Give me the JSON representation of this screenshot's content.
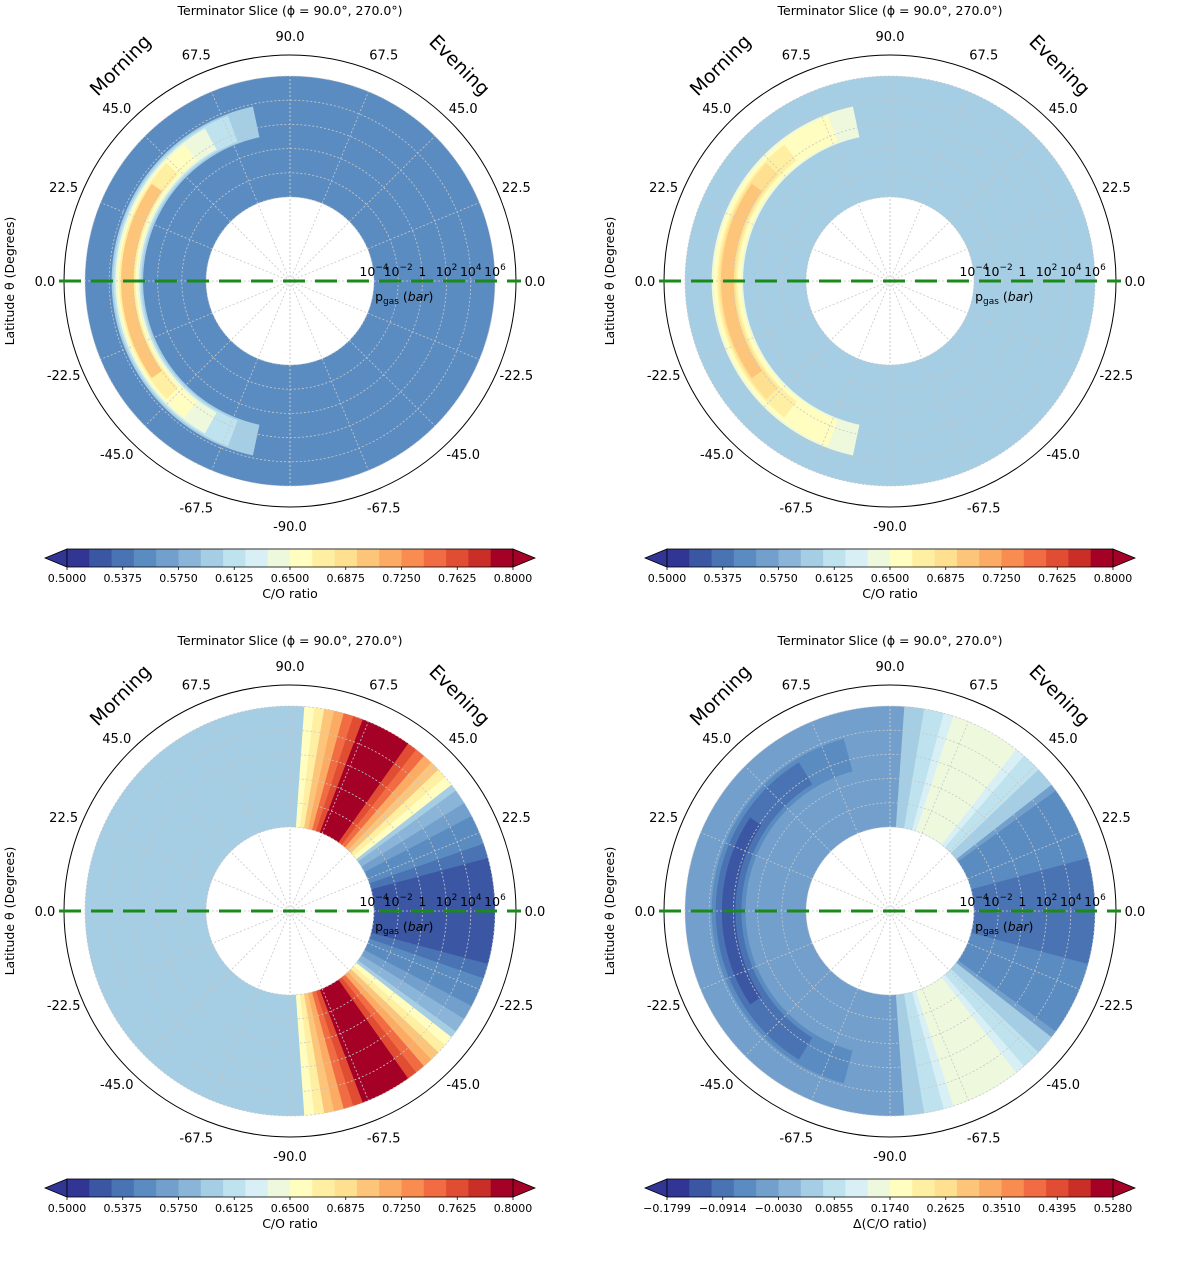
{
  "chart_data": [
    {
      "type": "heatmap",
      "projection": "polar",
      "title": "Terminator Slice (ϕ = 90.0°, 270.0°)",
      "left_label": "Morning",
      "right_label": "Evening",
      "ylabel": "Latitude θ (Degrees)",
      "pressure_label": "pgas (bar)",
      "colorbar_label": "C/O ratio",
      "colorbar_ticks": [
        "0.5000",
        "0.5375",
        "0.5750",
        "0.6125",
        "0.6500",
        "0.6875",
        "0.7250",
        "0.7625",
        "0.8000"
      ],
      "colorbar_range": [
        0.5,
        0.8
      ],
      "latitude_ticks_left": [
        "90.0",
        "67.5",
        "45.0",
        "22.5",
        "0.0",
        "-22.5",
        "-45.0",
        "-67.5",
        "-90.0"
      ],
      "latitude_ticks_right": [
        "67.5",
        "45.0",
        "22.5",
        "0.0",
        "-22.5",
        "-45.0",
        "-67.5"
      ],
      "pressure_ticks": [
        "10^6",
        "10^4",
        "10^2",
        "1",
        "10^-2",
        "10^-4"
      ],
      "background_value": 0.546,
      "features": [
        {
          "kind": "crescent",
          "side": "morning",
          "lat_range": [
            -78,
            78
          ],
          "pressure_log10_range": [
            1.2,
            3.8
          ],
          "peak_value": 0.7
        }
      ]
    },
    {
      "type": "heatmap",
      "projection": "polar",
      "title": "Terminator Slice (ϕ = 90.0°, 270.0°)",
      "left_label": "Morning",
      "right_label": "Evening",
      "ylabel": "Latitude θ (Degrees)",
      "pressure_label": "pgas (bar)",
      "colorbar_label": "C/O ratio",
      "colorbar_ticks": [
        "0.5000",
        "0.5375",
        "0.5750",
        "0.6125",
        "0.6500",
        "0.6875",
        "0.7250",
        "0.7625",
        "0.8000"
      ],
      "colorbar_range": [
        0.5,
        0.8
      ],
      "latitude_ticks_left": [
        "90.0",
        "67.5",
        "45.0",
        "22.5",
        "0.0",
        "-22.5",
        "-45.0",
        "-67.5",
        "-90.0"
      ],
      "latitude_ticks_right": [
        "67.5",
        "45.0",
        "22.5",
        "0.0",
        "-22.5",
        "-45.0",
        "-67.5"
      ],
      "pressure_ticks": [
        "10^6",
        "10^4",
        "10^2",
        "1",
        "10^-2",
        "10^-4"
      ],
      "background_value": 0.6,
      "features": [
        {
          "kind": "crescent",
          "side": "morning",
          "lat_range": [
            -78,
            78
          ],
          "pressure_log10_range": [
            1.2,
            3.8
          ],
          "peak_value": 0.705
        }
      ]
    },
    {
      "type": "heatmap",
      "projection": "polar",
      "title": "Terminator Slice (ϕ = 90.0°, 270.0°)",
      "left_label": "Morning",
      "right_label": "Evening",
      "ylabel": "Latitude θ (Degrees)",
      "pressure_label": "pgas (bar)",
      "colorbar_label": "C/O ratio",
      "colorbar_ticks": [
        "0.5000",
        "0.5375",
        "0.5750",
        "0.6125",
        "0.6500",
        "0.6875",
        "0.7250",
        "0.7625",
        "0.8000"
      ],
      "colorbar_range": [
        0.5,
        0.8
      ],
      "latitude_ticks_left": [
        "90.0",
        "67.5",
        "45.0",
        "22.5",
        "0.0",
        "-22.5",
        "-45.0",
        "-67.5",
        "-90.0"
      ],
      "latitude_ticks_right": [
        "67.5",
        "45.0",
        "22.5",
        "0.0",
        "-22.5",
        "-45.0",
        "-67.5"
      ],
      "pressure_ticks": [
        "10^6",
        "10^4",
        "10^2",
        "1",
        "10^-2",
        "10^-4"
      ],
      "background_value": 0.6,
      "features": [
        {
          "kind": "wedge",
          "side": "evening",
          "lat_range": [
            38,
            86
          ],
          "peak_value": 0.79
        },
        {
          "kind": "wedge",
          "side": "evening",
          "lat_range": [
            -86,
            -38
          ],
          "peak_value": 0.79
        },
        {
          "kind": "wedge",
          "side": "evening",
          "lat_range": [
            -36,
            36
          ],
          "peak_value": 0.52
        }
      ]
    },
    {
      "type": "heatmap",
      "projection": "polar",
      "title": "Terminator Slice (ϕ = 90.0°, 270.0°)",
      "left_label": "Morning",
      "right_label": "Evening",
      "ylabel": "Latitude θ (Degrees)",
      "pressure_label": "pgas (bar)",
      "colorbar_label": "Δ(C/O ratio)",
      "colorbar_ticks": [
        "−0.1799",
        "−0.0914",
        "−0.0030",
        "0.0855",
        "0.1740",
        "0.2625",
        "0.3510",
        "0.4395",
        "0.5280"
      ],
      "colorbar_range": [
        -0.1799,
        0.528
      ],
      "latitude_ticks_left": [
        "90.0",
        "67.5",
        "45.0",
        "22.5",
        "0.0",
        "-22.5",
        "-45.0",
        "-67.5",
        "-90.0"
      ],
      "latitude_ticks_right": [
        "67.5",
        "45.0",
        "22.5",
        "0.0",
        "-22.5",
        "-45.0",
        "-67.5"
      ],
      "pressure_ticks": [
        "10^6",
        "10^4",
        "10^2",
        "1",
        "10^-2",
        "10^-4"
      ],
      "background_value": -0.02,
      "features": [
        {
          "kind": "crescent",
          "side": "morning",
          "lat_range": [
            -75,
            75
          ],
          "pressure_log10_range": [
            1.0,
            3.8
          ],
          "peak_value": -0.12
        },
        {
          "kind": "wedge",
          "side": "evening",
          "lat_range": [
            38,
            86
          ],
          "peak_value": 0.16
        },
        {
          "kind": "wedge",
          "side": "evening",
          "lat_range": [
            -86,
            -38
          ],
          "peak_value": 0.16
        },
        {
          "kind": "wedge",
          "side": "evening",
          "lat_range": [
            -36,
            36
          ],
          "peak_value": -0.09
        }
      ]
    }
  ]
}
